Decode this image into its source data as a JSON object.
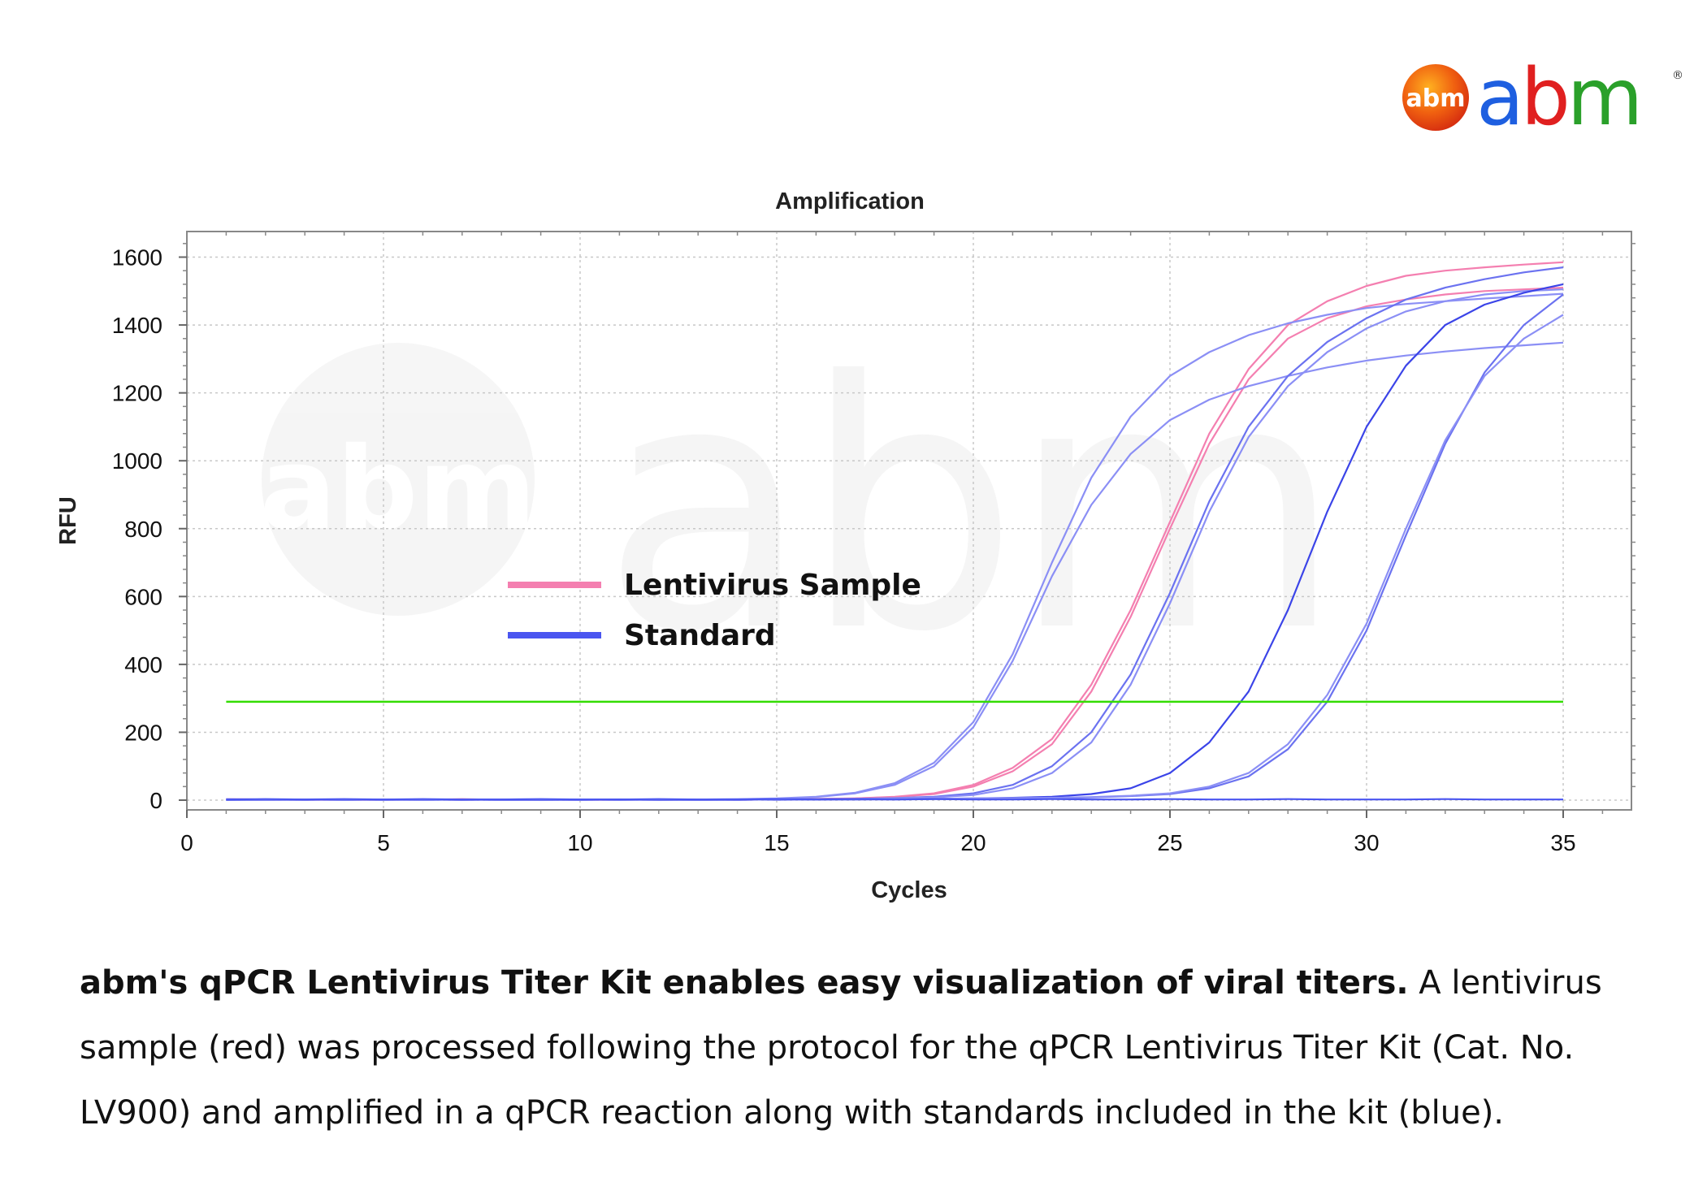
{
  "logo": {
    "badge_text": "abm",
    "wordmark": "abm",
    "mark": "®"
  },
  "chart_data": {
    "type": "line",
    "title": "Amplification",
    "xlabel": "Cycles",
    "ylabel": "RFU",
    "xlim": [
      0,
      36
    ],
    "ylim": [
      -40,
      1670
    ],
    "x_ticks": [
      0,
      5,
      10,
      15,
      20,
      25,
      30,
      35
    ],
    "y_ticks": [
      0,
      200,
      400,
      600,
      800,
      1000,
      1200,
      1400,
      1600
    ],
    "grid": true,
    "legend": [
      {
        "label": "Lentivirus Sample",
        "color": "#f47fb0"
      },
      {
        "label": "Standard",
        "color": "#4a55f0"
      }
    ],
    "legend_placement": "center-left",
    "threshold": 290,
    "threshold_color": "#33dd00",
    "x": [
      1,
      2,
      3,
      4,
      5,
      6,
      7,
      8,
      9,
      10,
      11,
      12,
      13,
      14,
      15,
      16,
      17,
      18,
      19,
      20,
      21,
      22,
      23,
      24,
      25,
      26,
      27,
      28,
      29,
      30,
      31,
      32,
      33,
      34,
      35
    ],
    "series": [
      {
        "group": "Lentivirus Sample",
        "color": "#f47fb0",
        "values": [
          3,
          2,
          1,
          1,
          2,
          1,
          3,
          1,
          2,
          1,
          1,
          2,
          1,
          2,
          3,
          4,
          5,
          10,
          20,
          45,
          95,
          180,
          340,
          560,
          820,
          1080,
          1270,
          1400,
          1470,
          1515,
          1545,
          1560,
          1570,
          1578,
          1585
        ]
      },
      {
        "group": "Lentivirus Sample",
        "color": "#f47fb0",
        "values": [
          2,
          1,
          2,
          1,
          1,
          2,
          1,
          2,
          1,
          2,
          2,
          1,
          2,
          1,
          2,
          3,
          5,
          9,
          18,
          40,
          85,
          165,
          320,
          540,
          800,
          1050,
          1240,
          1360,
          1420,
          1455,
          1475,
          1490,
          1500,
          1505,
          1510
        ]
      },
      {
        "group": "Standard",
        "color": "#8b8ff5",
        "values": [
          3,
          2,
          2,
          1,
          2,
          2,
          1,
          2,
          2,
          1,
          2,
          1,
          2,
          3,
          5,
          10,
          22,
          50,
          110,
          230,
          430,
          700,
          950,
          1130,
          1250,
          1320,
          1370,
          1405,
          1430,
          1450,
          1462,
          1470,
          1478,
          1485,
          1492
        ]
      },
      {
        "group": "Standard",
        "color": "#8b8ff5",
        "values": [
          2,
          1,
          2,
          1,
          2,
          1,
          2,
          1,
          1,
          2,
          1,
          2,
          1,
          2,
          4,
          9,
          20,
          45,
          100,
          215,
          410,
          660,
          870,
          1020,
          1120,
          1180,
          1220,
          1250,
          1275,
          1295,
          1310,
          1322,
          1332,
          1340,
          1348
        ]
      },
      {
        "group": "Standard",
        "color": "#6b72f0",
        "values": [
          1,
          1,
          2,
          1,
          2,
          1,
          1,
          2,
          1,
          1,
          2,
          1,
          1,
          2,
          2,
          3,
          4,
          6,
          10,
          20,
          45,
          100,
          200,
          370,
          610,
          880,
          1100,
          1250,
          1350,
          1420,
          1475,
          1510,
          1535,
          1555,
          1570
        ]
      },
      {
        "group": "Standard",
        "color": "#8b8ff5",
        "values": [
          1,
          2,
          1,
          1,
          2,
          1,
          2,
          1,
          1,
          2,
          1,
          1,
          2,
          1,
          2,
          2,
          3,
          5,
          8,
          15,
          35,
          80,
          170,
          340,
          580,
          850,
          1070,
          1220,
          1320,
          1390,
          1440,
          1470,
          1490,
          1500,
          1505
        ]
      },
      {
        "group": "Standard",
        "color": "#3b44e8",
        "values": [
          1,
          1,
          1,
          2,
          1,
          1,
          2,
          1,
          1,
          1,
          2,
          1,
          1,
          1,
          2,
          2,
          2,
          3,
          4,
          5,
          7,
          10,
          18,
          35,
          80,
          170,
          320,
          560,
          850,
          1100,
          1280,
          1400,
          1460,
          1495,
          1520
        ]
      },
      {
        "group": "Standard",
        "color": "#6b72f0",
        "values": [
          1,
          1,
          2,
          1,
          1,
          2,
          1,
          1,
          1,
          2,
          1,
          1,
          1,
          2,
          1,
          2,
          2,
          2,
          3,
          4,
          5,
          6,
          8,
          12,
          18,
          35,
          70,
          150,
          290,
          500,
          780,
          1050,
          1260,
          1400,
          1490
        ]
      },
      {
        "group": "Standard",
        "color": "#8b8ff5",
        "values": [
          2,
          1,
          1,
          2,
          1,
          1,
          2,
          1,
          2,
          1,
          1,
          2,
          1,
          1,
          2,
          2,
          3,
          3,
          4,
          5,
          6,
          7,
          9,
          13,
          20,
          40,
          80,
          165,
          310,
          520,
          800,
          1060,
          1250,
          1360,
          1430
        ]
      },
      {
        "group": "Standard",
        "color": "#4a55f0",
        "values": [
          2,
          3,
          2,
          3,
          2,
          3,
          2,
          2,
          3,
          2,
          2,
          3,
          2,
          2,
          3,
          2,
          3,
          2,
          3,
          2,
          2,
          3,
          2,
          2,
          3,
          2,
          2,
          3,
          2,
          2,
          2,
          3,
          2,
          2,
          2
        ]
      }
    ]
  },
  "caption": {
    "bold": "abm's qPCR Lentivirus Titer Kit enables easy visualization of viral titers.",
    "rest": " A lentivirus sample (red) was processed following the protocol for the qPCR Lentivirus Titer Kit (Cat. No. LV900) and amplified in a qPCR reaction along with standards included in the kit (blue)."
  }
}
